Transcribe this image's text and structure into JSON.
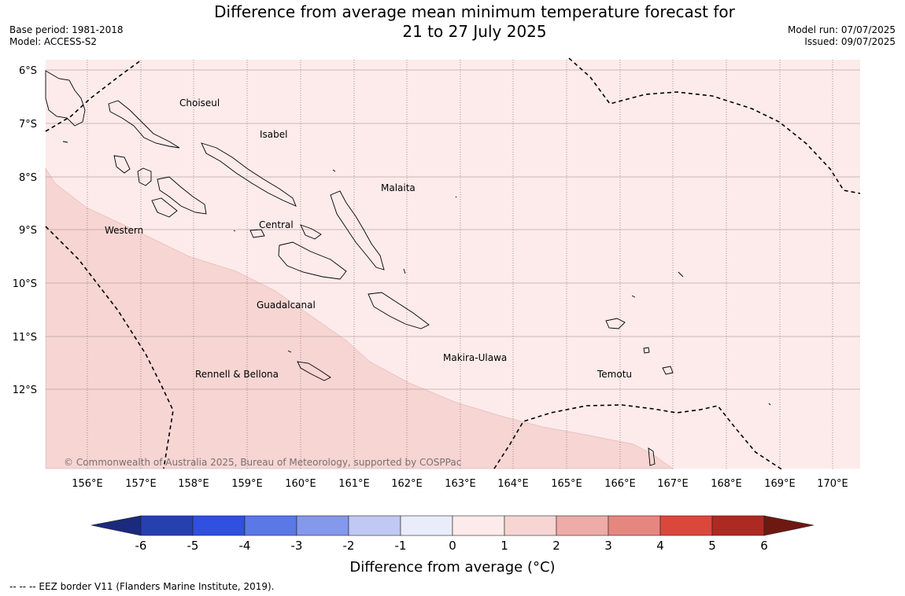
{
  "header": {
    "title_line1": "Difference from average mean minimum temperature forecast for",
    "title_line2": "21 to 27 July 2025",
    "base_period": "Base period: 1981-2018",
    "model": "Model: ACCESS-S2",
    "model_run": "Model run: 07/07/2025",
    "issued": "Issued: 09/07/2025"
  },
  "map": {
    "lat_labels": [
      "6°S",
      "7°S",
      "8°S",
      "9°S",
      "10°S",
      "11°S",
      "12°S"
    ],
    "lon_labels": [
      "156°E",
      "157°E",
      "158°E",
      "159°E",
      "160°E",
      "161°E",
      "162°E",
      "163°E",
      "164°E",
      "165°E",
      "166°E",
      "167°E",
      "168°E",
      "169°E",
      "170°E"
    ],
    "provinces": [
      "Choiseul",
      "Isabel",
      "Malaita",
      "Central",
      "Western",
      "Guadalcanal",
      "Makira-Ulawa",
      "Temotu",
      "Rennell & Bellona"
    ],
    "copyright": "© Commonwealth of Australia 2025, Bureau of Meteorology, supported by COSPPac",
    "shading_classes": [
      {
        "range": "0 to 1",
        "color": "#fcebea"
      },
      {
        "range": "1 to 2",
        "color": "#f6d5d3"
      }
    ]
  },
  "colorbar": {
    "ticks": [
      "-6",
      "-5",
      "-4",
      "-3",
      "-2",
      "-1",
      "0",
      "1",
      "2",
      "3",
      "4",
      "5",
      "6"
    ],
    "colors": [
      "#1b2a7d",
      "#2740b0",
      "#2f50e0",
      "#5a78e6",
      "#8498ec",
      "#c0c8f4",
      "#e9ecfb",
      "#fcebea",
      "#f6d5d3",
      "#eeaba7",
      "#e6877f",
      "#dc473c",
      "#ad2a22",
      "#6e1812"
    ],
    "label": "Difference from average (°C)"
  },
  "footer": {
    "legend_note": "--  --  -- EEZ border V11 (Flanders Marine Institute, 2019)."
  }
}
